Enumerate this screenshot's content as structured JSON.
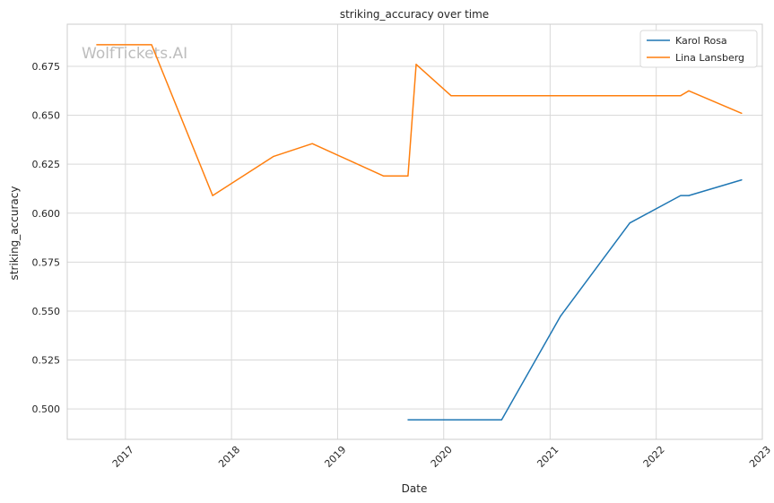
{
  "chart_data": {
    "type": "line",
    "title": "striking_accuracy over time",
    "xlabel": "Date",
    "ylabel": "striking_accuracy",
    "watermark": "WolfTickets.AI",
    "x_ticks": [
      "2017",
      "2018",
      "2019",
      "2020",
      "2021",
      "2022",
      "2023"
    ],
    "y_ticks": [
      "0.500",
      "0.525",
      "0.550",
      "0.575",
      "0.600",
      "0.625",
      "0.650",
      "0.675"
    ],
    "xlim": [
      "2016-06-15",
      "2023-01-01"
    ],
    "ylim": [
      0.4845,
      0.6965
    ],
    "grid": true,
    "legend_position": "top-right",
    "series": [
      {
        "name": "Karol Rosa",
        "color": "#1f77b4",
        "points": [
          {
            "x": "2019-08-31",
            "y": 0.4945
          },
          {
            "x": "2020-07-18",
            "y": 0.4945
          },
          {
            "x": "2021-02-06",
            "y": 0.5475
          },
          {
            "x": "2021-10-02",
            "y": 0.595
          },
          {
            "x": "2022-03-26",
            "y": 0.609
          },
          {
            "x": "2022-04-23",
            "y": 0.609
          },
          {
            "x": "2022-10-22",
            "y": 0.617
          }
        ]
      },
      {
        "name": "Lina Lansberg",
        "color": "#ff7f0e",
        "points": [
          {
            "x": "2016-09-24",
            "y": 0.686
          },
          {
            "x": "2017-04-01",
            "y": 0.686
          },
          {
            "x": "2017-10-28",
            "y": 0.609
          },
          {
            "x": "2018-05-26",
            "y": 0.629
          },
          {
            "x": "2018-10-06",
            "y": 0.6355
          },
          {
            "x": "2019-06-08",
            "y": 0.619
          },
          {
            "x": "2019-08-31",
            "y": 0.619
          },
          {
            "x": "2019-09-28",
            "y": 0.676
          },
          {
            "x": "2020-01-26",
            "y": 0.66
          },
          {
            "x": "2022-03-26",
            "y": 0.66
          },
          {
            "x": "2022-04-23",
            "y": 0.6625
          },
          {
            "x": "2022-10-22",
            "y": 0.651
          }
        ]
      }
    ]
  }
}
